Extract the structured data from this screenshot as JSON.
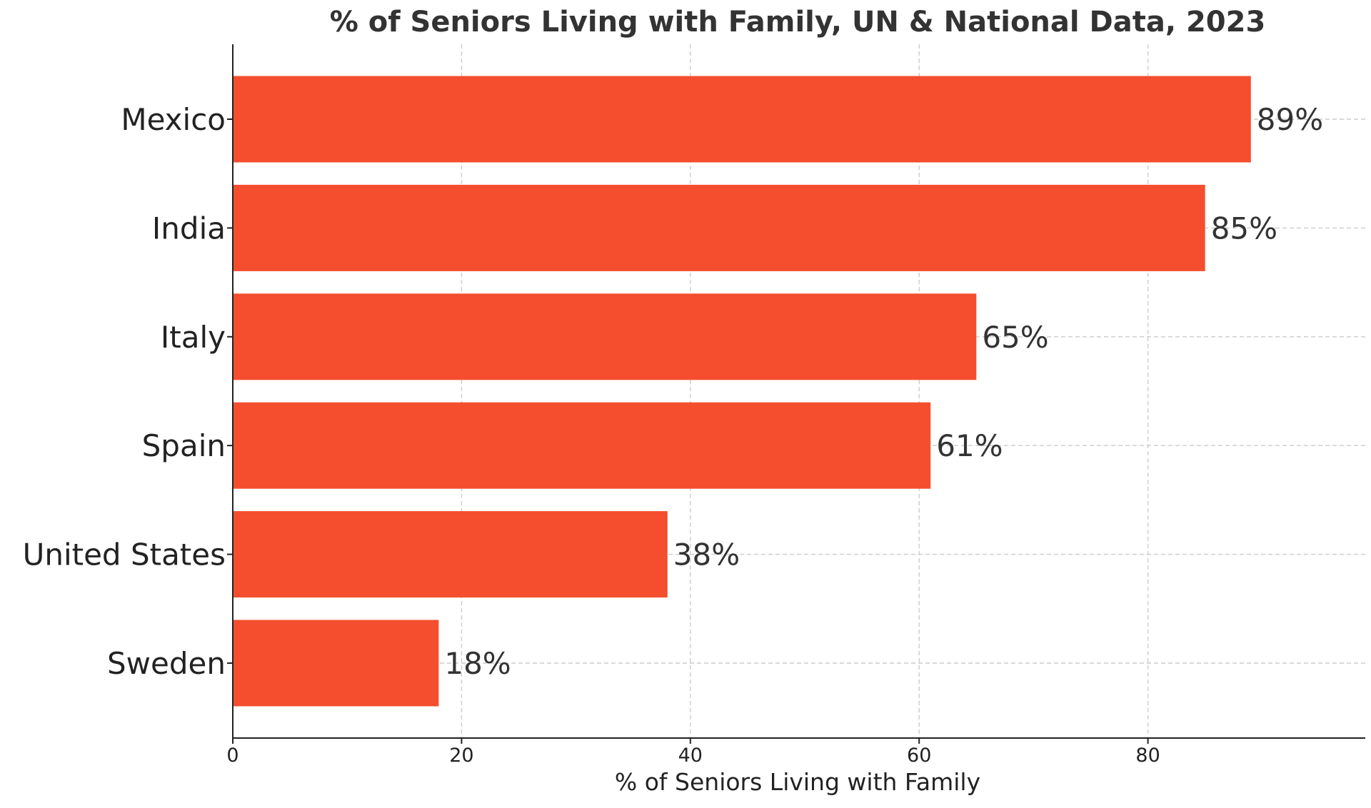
{
  "chart_data": {
    "type": "bar",
    "orientation": "horizontal",
    "title": "% of Seniors Living with Family, UN & National Data, 2023",
    "xlabel": "% of Seniors Living with Family",
    "ylabel": "",
    "categories": [
      "Mexico",
      "India",
      "Italy",
      "Spain",
      "United States",
      "Sweden"
    ],
    "values": [
      89,
      85,
      65,
      61,
      38,
      18
    ],
    "data_labels": [
      "89%",
      "85%",
      "65%",
      "61%",
      "38%",
      "18%"
    ],
    "xlim": [
      0,
      99
    ],
    "x_ticks": [
      0,
      20,
      40,
      60,
      80
    ],
    "x_tick_labels": [
      "0",
      "20",
      "40",
      "60",
      "80"
    ],
    "grid": true,
    "legend": "none",
    "bar_color": "#f44e2e"
  }
}
